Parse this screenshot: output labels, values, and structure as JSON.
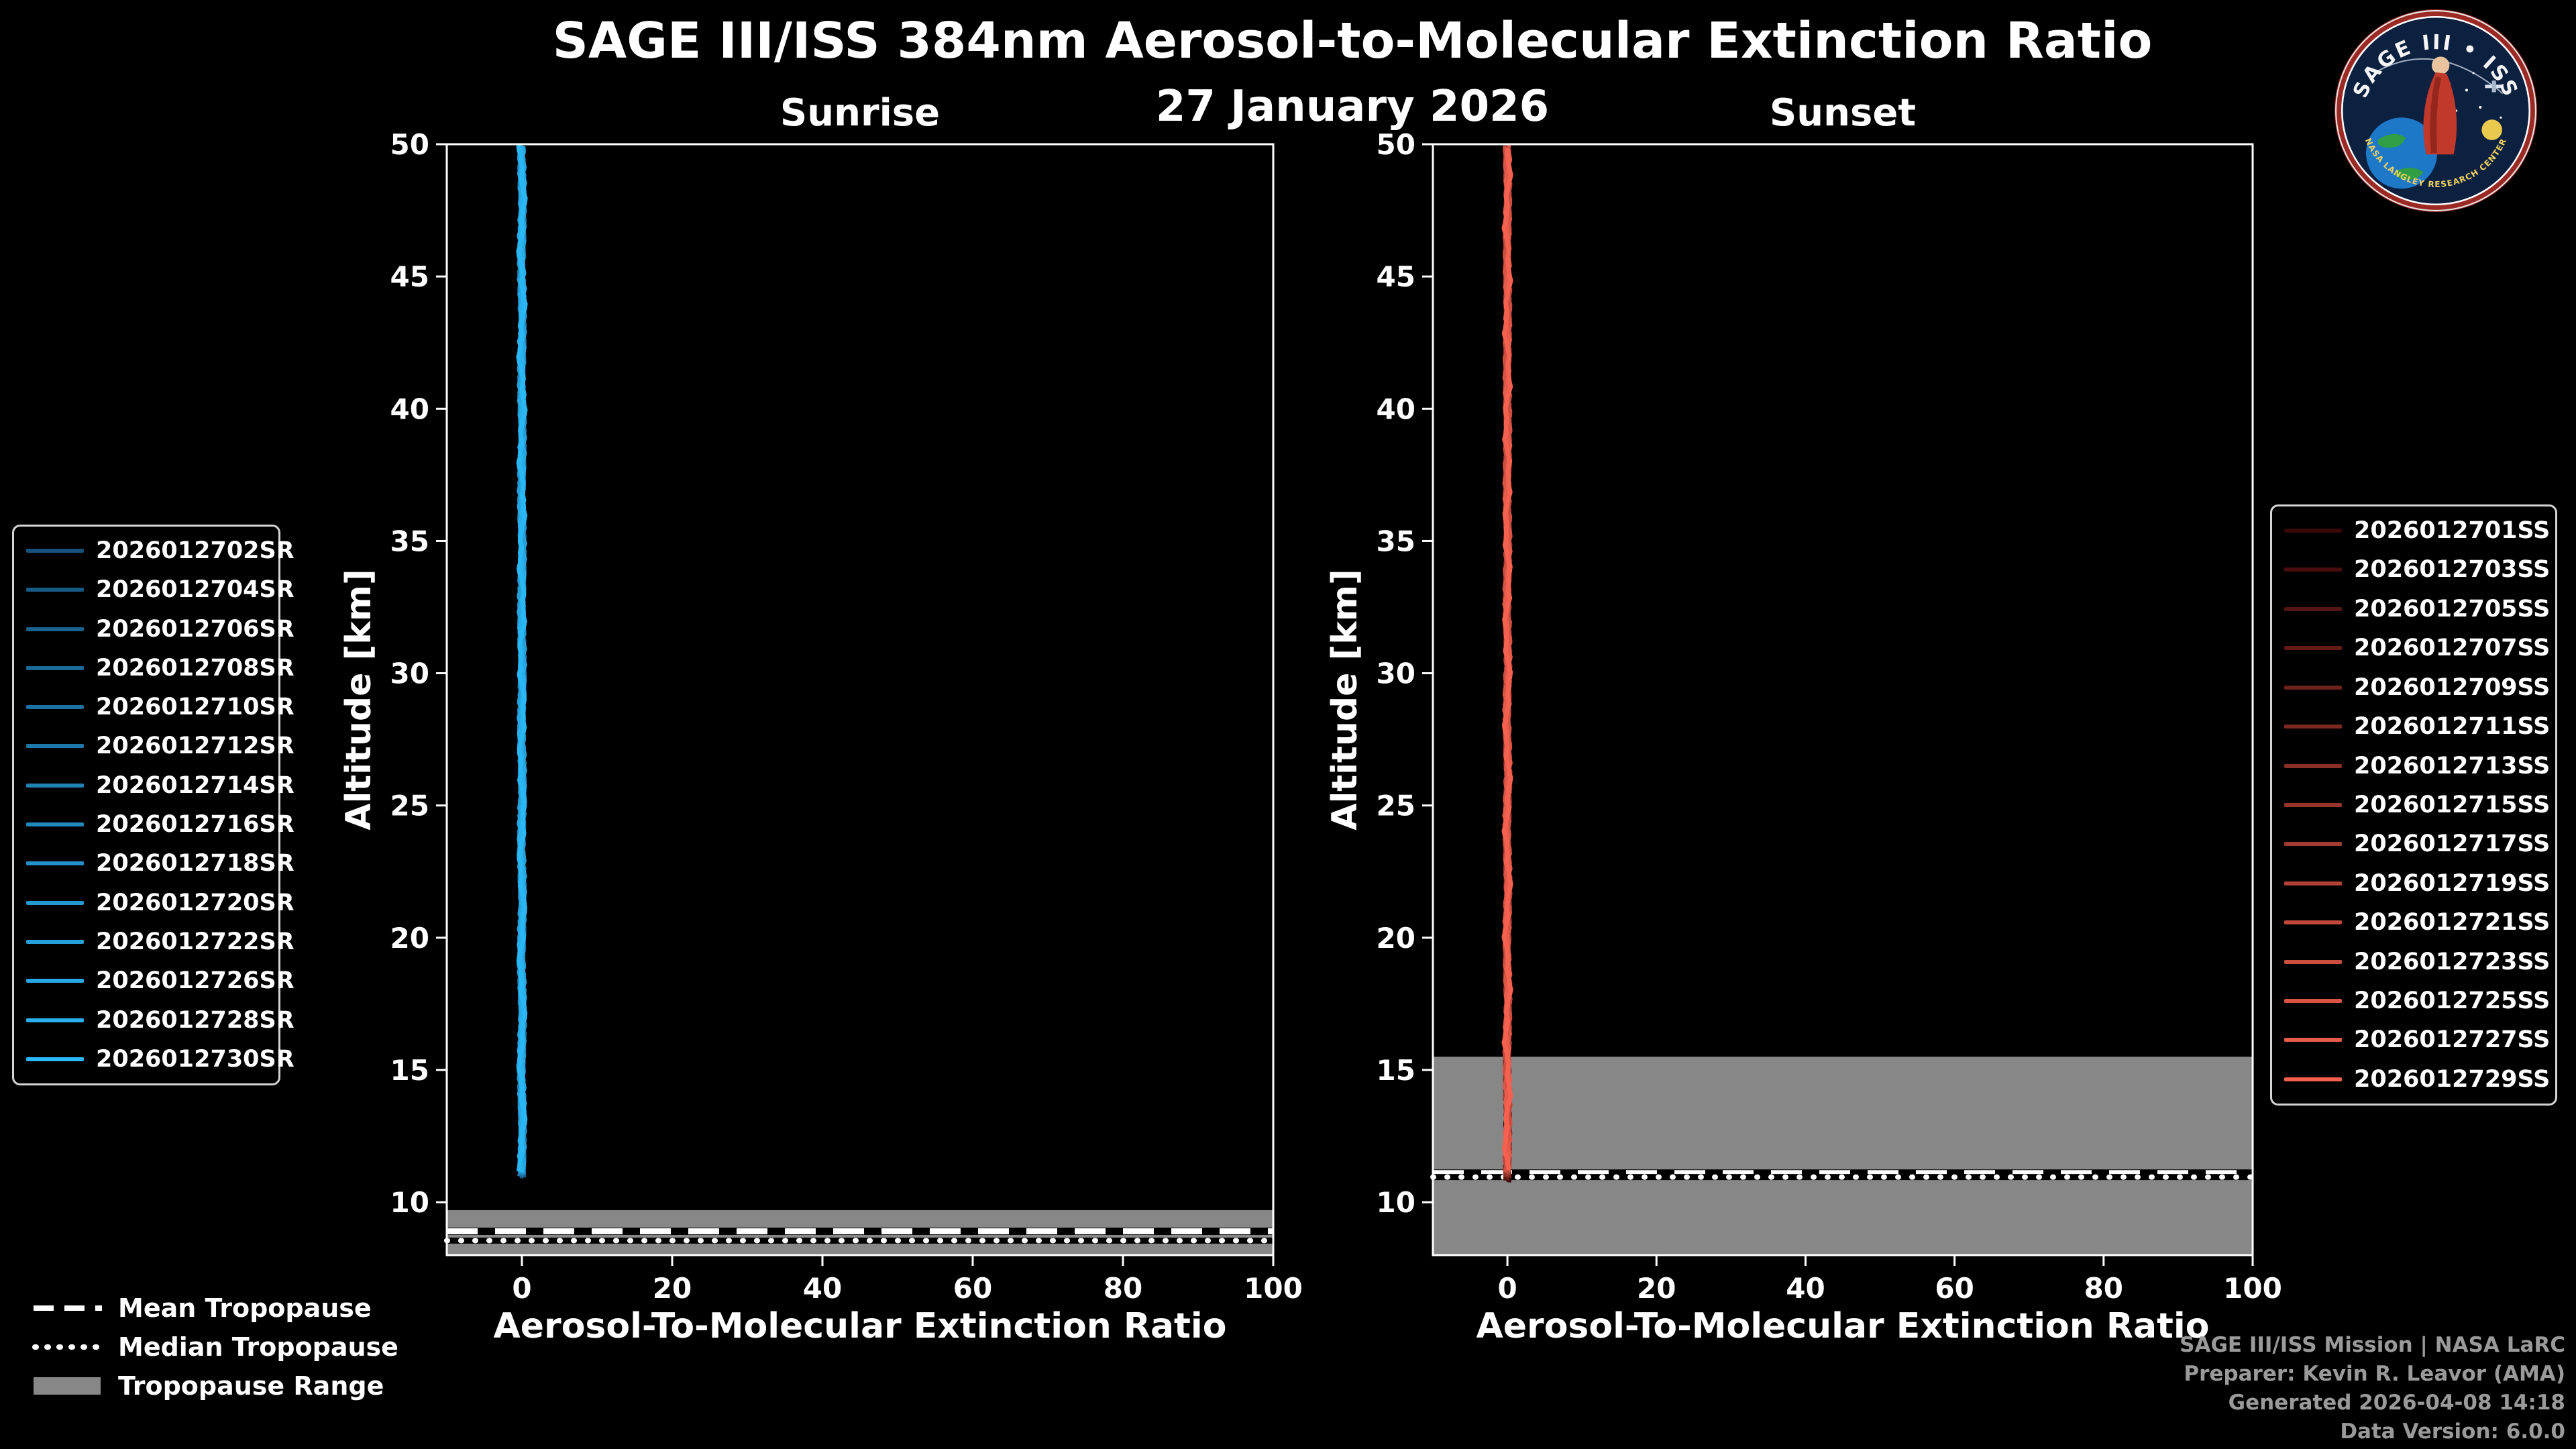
{
  "header": {
    "title": "SAGE III/ISS 384nm Aerosol-to-Molecular Extinction Ratio",
    "date": "27 January 2026"
  },
  "logo": {
    "title": "SAGE III • ISS",
    "band_text": "NASA LANGLEY RESEARCH CENTER"
  },
  "tropopause_legend": {
    "mean_label": "Mean Tropopause",
    "median_label": "Median Tropopause",
    "range_label": "Tropopause Range"
  },
  "footer": {
    "lines": [
      "SAGE III/ISS Mission | NASA LaRC",
      "Preparer: Kevin R. Leavor (AMA)",
      "Generated 2026-04-08 14:18",
      "Data Version: 6.0.0"
    ]
  },
  "chart_data": [
    {
      "type": "line",
      "title": "Sunrise",
      "xlabel": "Aerosol-To-Molecular Extinction Ratio",
      "ylabel": "Altitude [km]",
      "xlim": [
        -10,
        100
      ],
      "ylim": [
        8,
        50
      ],
      "xticks": [
        0,
        20,
        40,
        60,
        80,
        100
      ],
      "yticks": [
        10,
        15,
        20,
        25,
        30,
        35,
        40,
        45,
        50
      ],
      "grid": false,
      "line_color_main": "#2AB7F5",
      "tropopause": {
        "mean_km": 8.9,
        "median_km": 8.55,
        "range_km": [
          8.0,
          9.7
        ],
        "range_color": "#878787"
      },
      "profile": {
        "altitude_min_km": 10.9,
        "altitude_max_km": 50,
        "ratio_approx": 0,
        "ratio_wiggle": 0.5
      },
      "series": [
        {
          "name": "2026012702SR",
          "color": "#17527D"
        },
        {
          "name": "2026012704SR",
          "color": "#185A86"
        },
        {
          "name": "2026012706SR",
          "color": "#1A628F"
        },
        {
          "name": "2026012708SR",
          "color": "#1B6999"
        },
        {
          "name": "2026012710SR",
          "color": "#1D71A2"
        },
        {
          "name": "2026012712SR",
          "color": "#1E79AB"
        },
        {
          "name": "2026012714SR",
          "color": "#2081B4"
        },
        {
          "name": "2026012716SR",
          "color": "#2188BE"
        },
        {
          "name": "2026012718SR",
          "color": "#2390C7"
        },
        {
          "name": "2026012720SR",
          "color": "#2498D0"
        },
        {
          "name": "2026012722SR",
          "color": "#26A0D9"
        },
        {
          "name": "2026012726SR",
          "color": "#27A7E3"
        },
        {
          "name": "2026012728SR",
          "color": "#29AFEC"
        },
        {
          "name": "2026012730SR",
          "color": "#2AB7F5"
        }
      ]
    },
    {
      "type": "line",
      "title": "Sunset",
      "xlabel": "Aerosol-To-Molecular Extinction Ratio",
      "ylabel": "Altitude [km]",
      "xlim": [
        -10,
        100
      ],
      "ylim": [
        8,
        50
      ],
      "xticks": [
        0,
        20,
        40,
        60,
        80,
        100
      ],
      "yticks": [
        10,
        15,
        20,
        25,
        30,
        35,
        40,
        45,
        50
      ],
      "grid": false,
      "line_color_main": "#F4614F",
      "tropopause": {
        "mean_km": 11.1,
        "median_km": 10.95,
        "range_km": [
          8.0,
          15.5
        ],
        "range_color": "#878787"
      },
      "profile": {
        "altitude_min_km": 10.75,
        "altitude_max_km": 50,
        "ratio_approx": 0,
        "ratio_wiggle": 0.5
      },
      "series": [
        {
          "name": "2026012701SS",
          "color": "#3A0808"
        },
        {
          "name": "2026012703SS",
          "color": "#470E0D"
        },
        {
          "name": "2026012705SS",
          "color": "#551512"
        },
        {
          "name": "2026012707SS",
          "color": "#621B17"
        },
        {
          "name": "2026012709SS",
          "color": "#6F211C"
        },
        {
          "name": "2026012711SS",
          "color": "#7C2821"
        },
        {
          "name": "2026012713SS",
          "color": "#8A2E26"
        },
        {
          "name": "2026012715SS",
          "color": "#97352C"
        },
        {
          "name": "2026012717SS",
          "color": "#A43B31"
        },
        {
          "name": "2026012719SS",
          "color": "#B24136"
        },
        {
          "name": "2026012721SS",
          "color": "#BF483B"
        },
        {
          "name": "2026012723SS",
          "color": "#CC4E40"
        },
        {
          "name": "2026012725SS",
          "color": "#DA5445"
        },
        {
          "name": "2026012727SS",
          "color": "#E75B4A"
        },
        {
          "name": "2026012729SS",
          "color": "#F4614F"
        }
      ]
    }
  ]
}
